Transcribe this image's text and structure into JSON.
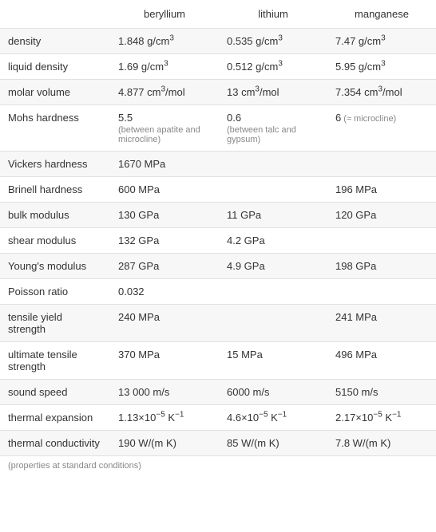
{
  "columns": [
    "beryllium",
    "lithium",
    "manganese"
  ],
  "rows": [
    {
      "label": "density",
      "cells": [
        {
          "value": "1.848 g/cm",
          "sup": "3"
        },
        {
          "value": "0.535 g/cm",
          "sup": "3"
        },
        {
          "value": "7.47 g/cm",
          "sup": "3"
        }
      ]
    },
    {
      "label": "liquid density",
      "cells": [
        {
          "value": "1.69 g/cm",
          "sup": "3"
        },
        {
          "value": "0.512 g/cm",
          "sup": "3"
        },
        {
          "value": "5.95 g/cm",
          "sup": "3"
        }
      ]
    },
    {
      "label": "molar volume",
      "cells": [
        {
          "value": "4.877 cm",
          "sup": "3",
          "suffix": "/mol"
        },
        {
          "value": "13 cm",
          "sup": "3",
          "suffix": "/mol"
        },
        {
          "value": "7.354 cm",
          "sup": "3",
          "suffix": "/mol"
        }
      ]
    },
    {
      "label": "Mohs hardness",
      "cells": [
        {
          "value": "5.5",
          "note": "(between apatite and microcline)"
        },
        {
          "value": "0.6",
          "note": "(between talc and gypsum)"
        },
        {
          "value": "6",
          "inline_note": " (≈ microcline)"
        }
      ]
    },
    {
      "label": "Vickers hardness",
      "cells": [
        {
          "value": "1670 MPa"
        },
        {
          "value": ""
        },
        {
          "value": ""
        }
      ]
    },
    {
      "label": "Brinell hardness",
      "cells": [
        {
          "value": "600 MPa"
        },
        {
          "value": ""
        },
        {
          "value": "196 MPa"
        }
      ]
    },
    {
      "label": "bulk modulus",
      "cells": [
        {
          "value": "130 GPa"
        },
        {
          "value": "11 GPa"
        },
        {
          "value": "120 GPa"
        }
      ]
    },
    {
      "label": "shear modulus",
      "cells": [
        {
          "value": "132 GPa"
        },
        {
          "value": "4.2 GPa"
        },
        {
          "value": ""
        }
      ]
    },
    {
      "label": "Young's modulus",
      "cells": [
        {
          "value": "287 GPa"
        },
        {
          "value": "4.9 GPa"
        },
        {
          "value": "198 GPa"
        }
      ]
    },
    {
      "label": "Poisson ratio",
      "cells": [
        {
          "value": "0.032"
        },
        {
          "value": ""
        },
        {
          "value": ""
        }
      ]
    },
    {
      "label": "tensile yield strength",
      "cells": [
        {
          "value": "240 MPa"
        },
        {
          "value": ""
        },
        {
          "value": "241 MPa"
        }
      ]
    },
    {
      "label": "ultimate tensile strength",
      "cells": [
        {
          "value": "370 MPa"
        },
        {
          "value": "15 MPa"
        },
        {
          "value": "496 MPa"
        }
      ]
    },
    {
      "label": "sound speed",
      "cells": [
        {
          "value": "13 000 m/s"
        },
        {
          "value": "6000 m/s"
        },
        {
          "value": "5150 m/s"
        }
      ]
    },
    {
      "label": "thermal expansion",
      "cells": [
        {
          "value": "1.13×10",
          "sup": "−5",
          "suffix": " K",
          "sup2": "−1"
        },
        {
          "value": "4.6×10",
          "sup": "−5",
          "suffix": " K",
          "sup2": "−1"
        },
        {
          "value": "2.17×10",
          "sup": "−5",
          "suffix": " K",
          "sup2": "−1"
        }
      ]
    },
    {
      "label": "thermal conductivity",
      "cells": [
        {
          "value": "190 W/(m K)"
        },
        {
          "value": "85 W/(m K)"
        },
        {
          "value": "7.8 W/(m K)"
        }
      ]
    }
  ],
  "footnote": "(properties at standard conditions)",
  "colors": {
    "row_alt": "#f7f7f7",
    "border": "#e0e0e0",
    "text": "#333333",
    "sub_text": "#888888"
  }
}
